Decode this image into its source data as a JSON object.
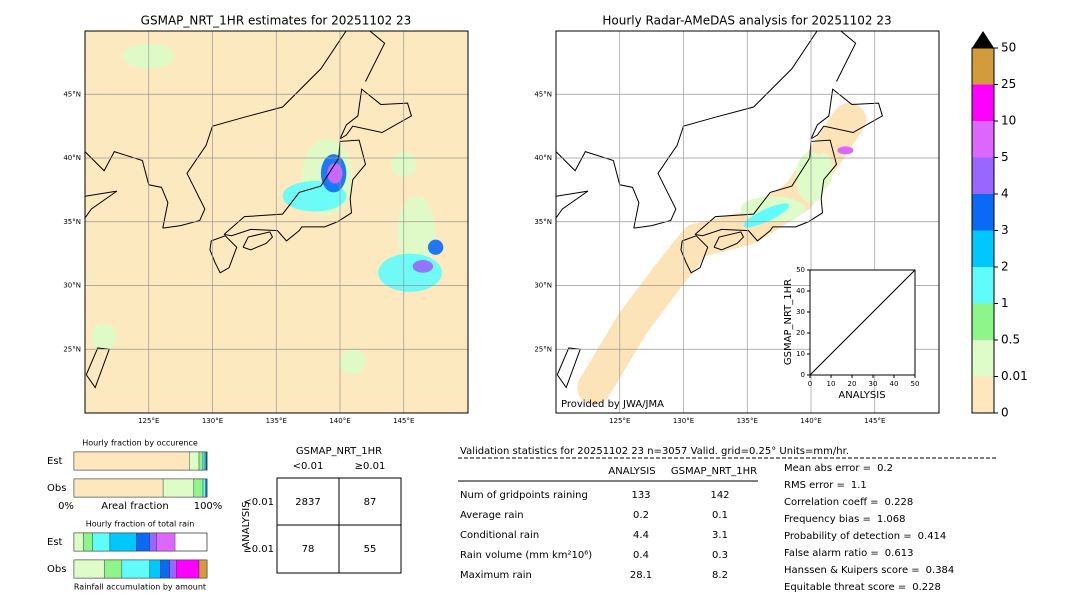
{
  "map_left": {
    "title": "GSMAP_NRT_1HR estimates for 20251102 23",
    "lat_ticks": [
      {
        "value": 45,
        "label": "45°N"
      },
      {
        "value": 40,
        "label": "40°N"
      },
      {
        "value": 35,
        "label": "35°N"
      },
      {
        "value": 30,
        "label": "30°N"
      },
      {
        "value": 25,
        "label": "25°N"
      }
    ],
    "lon_ticks": [
      {
        "value": 125,
        "label": "125°E"
      },
      {
        "value": 130,
        "label": "130°E"
      },
      {
        "value": 135,
        "label": "135°E"
      },
      {
        "value": 140,
        "label": "140°E"
      },
      {
        "value": 145,
        "label": "145°E"
      }
    ]
  },
  "map_right": {
    "title": "Hourly Radar-AMeDAS analysis for 20251102 23",
    "credit": "Provided by JWA/JMA",
    "lat_ticks": [
      {
        "value": 45,
        "label": "45°N"
      },
      {
        "value": 40,
        "label": "40°N"
      },
      {
        "value": 35,
        "label": "35°N"
      },
      {
        "value": 30,
        "label": "30°N"
      },
      {
        "value": 25,
        "label": "25°N"
      }
    ],
    "lon_ticks": [
      {
        "value": 125,
        "label": "125°E"
      },
      {
        "value": 130,
        "label": "130°E"
      },
      {
        "value": 135,
        "label": "135°E"
      },
      {
        "value": 140,
        "label": "140°E"
      },
      {
        "value": 145,
        "label": "145°E"
      }
    ]
  },
  "colorbar": {
    "ticks": [
      0,
      0.01,
      0.5,
      1,
      2,
      3,
      4,
      5,
      10,
      25,
      50
    ],
    "colors": [
      "#fee6bd",
      "#ddfcc8",
      "#8ef58a",
      "#5ffcfc",
      "#00c8ff",
      "#0a6af5",
      "#9966ff",
      "#dd66ff",
      "#ff00ff",
      "#d29b3c"
    ]
  },
  "scatter": {
    "xlabel": "ANALYSIS",
    "ylabel": "GSMAP_NRT_1HR",
    "xlim": [
      0,
      50
    ],
    "ylim": [
      0,
      50
    ],
    "xticks": [
      0,
      10,
      20,
      30,
      40,
      50
    ],
    "yticks": [
      0,
      10,
      20,
      30,
      40,
      50
    ]
  },
  "fraction_occurrence": {
    "title": "Hourly fraction by occurence",
    "axis_left": "0%",
    "axis_label": "Areal fraction",
    "axis_right": "100%",
    "rows": [
      {
        "label": "Est",
        "values": [
          87,
          7,
          3,
          1.5,
          1,
          0.5
        ],
        "colors": [
          "#fee6bd",
          "#ddfcc8",
          "#8ef58a",
          "#5ffcfc",
          "#00c8ff",
          "#0a6af5"
        ]
      },
      {
        "label": "Obs",
        "values": [
          67,
          23,
          7,
          2,
          1
        ],
        "colors": [
          "#fee6bd",
          "#ddfcc8",
          "#8ef58a",
          "#5ffcfc",
          "#0a6af5"
        ]
      }
    ]
  },
  "fraction_total": {
    "title": "Hourly fraction of total rain",
    "footer": "Rainfall accumulation by amount",
    "rows": [
      {
        "label": "Est",
        "values": [
          7,
          7,
          13,
          20,
          10,
          5,
          14
        ],
        "colors": [
          "#ddfcc8",
          "#8ef58a",
          "#5ffcfc",
          "#00c8ff",
          "#0a6af5",
          "#9966ff",
          "#dd66ff"
        ]
      },
      {
        "label": "Obs",
        "values": [
          23,
          13,
          21,
          8,
          7,
          5,
          17,
          6
        ],
        "colors": [
          "#ddfcc8",
          "#8ef58a",
          "#5ffcfc",
          "#00c8ff",
          "#0a6af5",
          "#9966ff",
          "#ff00ff",
          "#d29b3c"
        ]
      }
    ]
  },
  "contingency": {
    "title": "GSMAP_NRT_1HR",
    "columns": [
      "<0.01",
      "≥0.01"
    ],
    "row_axis": "ANALYSIS",
    "rows": [
      "<0.01",
      "≥0.01"
    ],
    "cells": [
      [
        2837,
        87
      ],
      [
        78,
        55
      ]
    ]
  },
  "validation": {
    "header": "Validation statistics for 20251102 23  n=3057 Valid. grid=0.25° Units=mm/hr.",
    "columns": [
      "ANALYSIS",
      "GSMAP_NRT_1HR"
    ],
    "rows": [
      [
        "Num of gridpoints raining",
        133,
        142
      ],
      [
        "Average rain",
        0.2,
        0.1
      ],
      [
        "Conditional rain",
        4.4,
        3.1
      ],
      [
        "Rain volume (mm km²10⁶)",
        0.4,
        0.3
      ],
      [
        "Maximum rain",
        28.1,
        8.2
      ]
    ],
    "stats": [
      [
        "Mean abs error =",
        0.2
      ],
      [
        "RMS error =",
        1.1
      ],
      [
        "Correlation coeff =",
        0.228
      ],
      [
        "Frequency bias =",
        1.068
      ],
      [
        "Probability of detection =",
        0.414
      ],
      [
        "False alarm ratio =",
        0.613
      ],
      [
        "Hanssen & Kuipers score =",
        0.384
      ],
      [
        "Equitable threat score =",
        0.228
      ]
    ]
  }
}
